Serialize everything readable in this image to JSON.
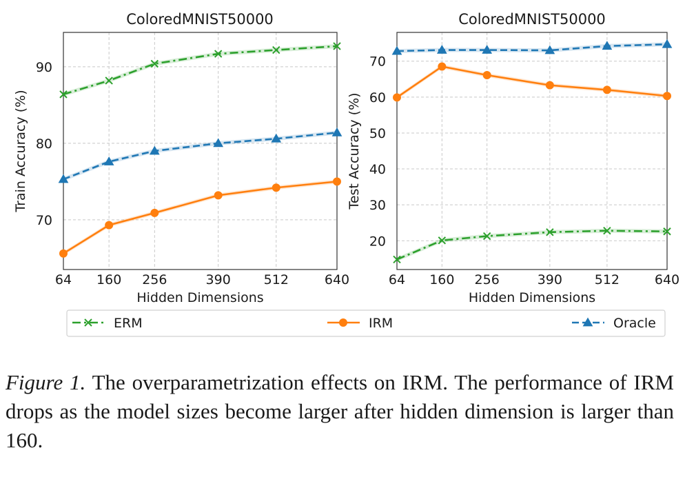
{
  "chart_data": [
    {
      "type": "line",
      "title": "ColoredMNIST50000",
      "xlabel": "Hidden Dimensions",
      "ylabel": "Train Accuracy (%)",
      "x": [
        64,
        160,
        256,
        390,
        512,
        640
      ],
      "xticks": [
        "64",
        "160",
        "256",
        "390",
        "512",
        "640"
      ],
      "ylim": [
        63.5,
        94.5
      ],
      "yticks": [
        70,
        80,
        90
      ],
      "grid": true,
      "series": [
        {
          "name": "ERM",
          "values": [
            86.4,
            88.2,
            90.4,
            91.7,
            92.2,
            92.7
          ],
          "color": "#2ca02c",
          "marker": "x",
          "linestyle": "dashdot"
        },
        {
          "name": "IRM",
          "values": [
            65.6,
            69.3,
            70.9,
            73.2,
            74.2,
            75.0
          ],
          "color": "#ff7f0e",
          "marker": "o",
          "linestyle": "solid"
        },
        {
          "name": "Oracle",
          "values": [
            75.3,
            77.6,
            79.0,
            80.0,
            80.6,
            81.4
          ],
          "color": "#1f77b4",
          "marker": "^",
          "linestyle": "dashed"
        }
      ]
    },
    {
      "type": "line",
      "title": "ColoredMNIST50000",
      "xlabel": "Hidden Dimensions",
      "ylabel": "Test Accuracy (%)",
      "x": [
        64,
        160,
        256,
        390,
        512,
        640
      ],
      "xticks": [
        "64",
        "160",
        "256",
        "390",
        "512",
        "640"
      ],
      "ylim": [
        12.0,
        78.0
      ],
      "yticks": [
        20,
        30,
        40,
        50,
        60,
        70
      ],
      "grid": true,
      "series": [
        {
          "name": "ERM",
          "values": [
            14.8,
            20.1,
            21.3,
            22.4,
            22.8,
            22.6
          ],
          "color": "#2ca02c",
          "marker": "x",
          "linestyle": "dashdot"
        },
        {
          "name": "IRM",
          "values": [
            59.9,
            68.5,
            66.1,
            63.3,
            62.0,
            60.3
          ],
          "color": "#ff7f0e",
          "marker": "o",
          "linestyle": "solid"
        },
        {
          "name": "Oracle",
          "values": [
            72.8,
            73.1,
            73.1,
            73.0,
            74.2,
            74.7
          ],
          "color": "#1f77b4",
          "marker": "^",
          "linestyle": "dashed"
        }
      ]
    }
  ],
  "legend": {
    "placement": "bottom",
    "entries": [
      {
        "label": "ERM",
        "color": "#2ca02c",
        "marker": "x",
        "linestyle": "dashdot"
      },
      {
        "label": "IRM",
        "color": "#ff7f0e",
        "marker": "o",
        "linestyle": "solid"
      },
      {
        "label": "Oracle",
        "color": "#1f77b4",
        "marker": "^",
        "linestyle": "dashed"
      }
    ]
  },
  "caption": {
    "figure_label": "Figure 1.",
    "text": " The overparametrization effects on IRM. The performance of IRM drops as the model sizes become larger after hidden dimension is larger than 160."
  }
}
